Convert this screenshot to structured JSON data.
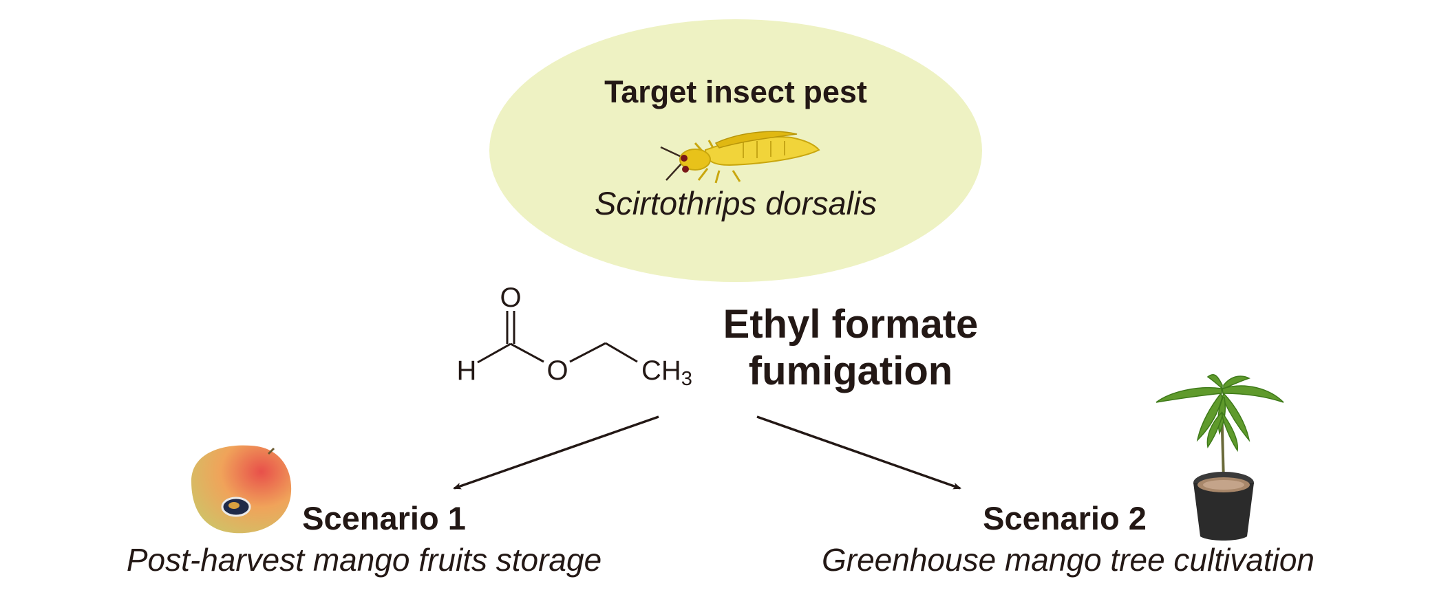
{
  "pest": {
    "title": "Target insect pest",
    "species": "Scirtothrips dorsalis",
    "icon": "thrips-insect-icon"
  },
  "chemical": {
    "name_line1": "Ethyl formate",
    "name_line2": "fumigation",
    "structure_atoms": {
      "oxygen_carbonyl": "O",
      "hydrogen": "H",
      "oxygen_ester": "O",
      "methyl": "CH",
      "methyl_subscript": "3"
    }
  },
  "scenarios": [
    {
      "title": "Scenario 1",
      "description": "Post-harvest mango fruits storage",
      "icon": "mango-fruit-icon"
    },
    {
      "title": "Scenario 2",
      "description": "Greenhouse mango tree cultivation",
      "icon": "potted-mango-tree-icon"
    }
  ],
  "colors": {
    "ellipse_fill": "#eef2c3",
    "text": "#231815",
    "thrips_body": "#e8c21a",
    "pot": "#2b2b2b"
  }
}
